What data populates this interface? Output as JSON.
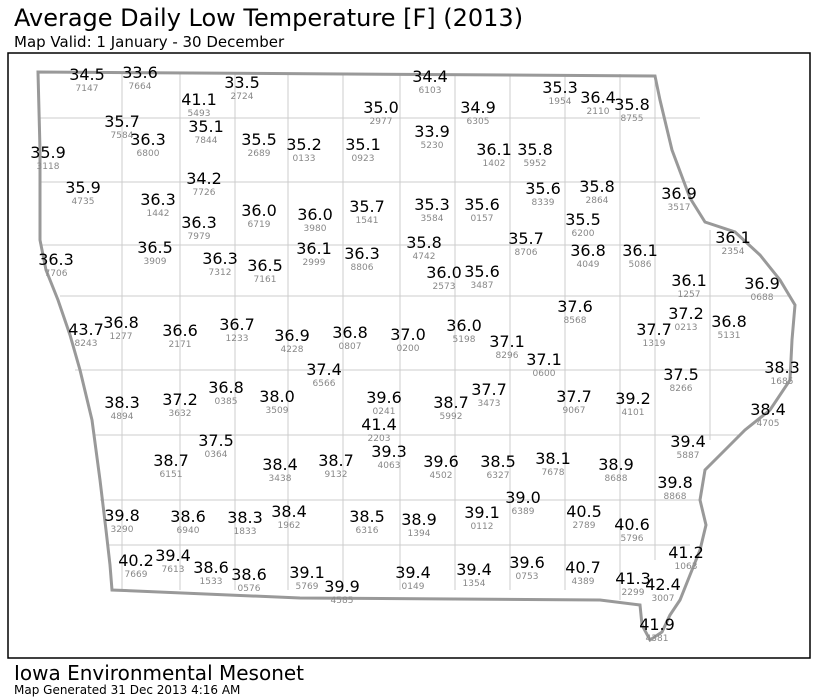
{
  "header": {
    "title": "Average Daily Low Temperature [F] (2013)",
    "subtitle": "Map Valid: 1 January - 30 December"
  },
  "footer": {
    "organization": "Iowa Environmental Mesonet",
    "generated": "Map Generated 31 Dec 2013 4:16 AM"
  },
  "stations": [
    [
      "34.5",
      "7147"
    ],
    [
      "33.6",
      "7664"
    ],
    [
      "41.1",
      "5493"
    ],
    [
      "33.5",
      "2724"
    ],
    [
      "34.4",
      "6103"
    ],
    [
      "35.0",
      "2977"
    ],
    [
      "34.9",
      "6305"
    ],
    [
      "35.3",
      "1954"
    ],
    [
      "36.4",
      "2110"
    ],
    [
      "35.8",
      "8755"
    ],
    [
      "35.7",
      "7584"
    ],
    [
      "36.3",
      "6800"
    ],
    [
      "35.1",
      "7844"
    ],
    [
      "35.5",
      "2689"
    ],
    [
      "35.2",
      "0133"
    ],
    [
      "35.1",
      "0923"
    ],
    [
      "33.9",
      "5230"
    ],
    [
      "36.1",
      "1402"
    ],
    [
      "35.8",
      "5952"
    ],
    [
      "35.9",
      "3118"
    ],
    [
      "35.9",
      "4735"
    ],
    [
      "36.3",
      "1442"
    ],
    [
      "34.2",
      "7726"
    ],
    [
      "36.3",
      "7979"
    ],
    [
      "36.0",
      "6719"
    ],
    [
      "36.0",
      "3980"
    ],
    [
      "35.7",
      "1541"
    ],
    [
      "35.3",
      "3584"
    ],
    [
      "35.6",
      "0157"
    ],
    [
      "35.6",
      "8339"
    ],
    [
      "35.8",
      "2864"
    ],
    [
      "36.9",
      "3517"
    ],
    [
      "35.5",
      "6200"
    ],
    [
      "36.5",
      "3909"
    ],
    [
      "36.3",
      "7706"
    ],
    [
      "36.3",
      "7312"
    ],
    [
      "36.5",
      "7161"
    ],
    [
      "36.1",
      "2999"
    ],
    [
      "36.3",
      "8806"
    ],
    [
      "35.8",
      "4742"
    ],
    [
      "36.0",
      "2573"
    ],
    [
      "35.6",
      "3487"
    ],
    [
      "35.7",
      "8706"
    ],
    [
      "36.8",
      "4049"
    ],
    [
      "36.1",
      "5086"
    ],
    [
      "36.1",
      "2354"
    ],
    [
      "36.1",
      "1257"
    ],
    [
      "36.9",
      "0688"
    ],
    [
      "43.7",
      "8243"
    ],
    [
      "36.8",
      "1277"
    ],
    [
      "36.6",
      "2171"
    ],
    [
      "36.7",
      "1233"
    ],
    [
      "36.9",
      "4228"
    ],
    [
      "36.8",
      "0807"
    ],
    [
      "37.0",
      "0200"
    ],
    [
      "36.0",
      "5198"
    ],
    [
      "37.1",
      "8296"
    ],
    [
      "37.6",
      "8568"
    ],
    [
      "37.7",
      "1319"
    ],
    [
      "37.2",
      "0213"
    ],
    [
      "36.8",
      "5131"
    ],
    [
      "37.1",
      "0600"
    ],
    [
      "37.4",
      "6566"
    ],
    [
      "38.3",
      "4894"
    ],
    [
      "37.2",
      "3632"
    ],
    [
      "36.8",
      "0385"
    ],
    [
      "38.0",
      "3509"
    ],
    [
      "39.6",
      "0241"
    ],
    [
      "38.7",
      "5992"
    ],
    [
      "37.7",
      "3473"
    ],
    [
      "37.7",
      "9067"
    ],
    [
      "39.2",
      "4101"
    ],
    [
      "37.5",
      "8266"
    ],
    [
      "38.3",
      "1685"
    ],
    [
      "38.4",
      "4705"
    ],
    [
      "41.4",
      "2203"
    ],
    [
      "37.5",
      "0364"
    ],
    [
      "38.7",
      "6151"
    ],
    [
      "38.4",
      "3438"
    ],
    [
      "38.7",
      "9132"
    ],
    [
      "39.3",
      "4063"
    ],
    [
      "39.6",
      "4502"
    ],
    [
      "38.5",
      "6327"
    ],
    [
      "38.1",
      "7678"
    ],
    [
      "38.9",
      "8688"
    ],
    [
      "39.4",
      "5887"
    ],
    [
      "39.8",
      "8868"
    ],
    [
      "39.8",
      "3290"
    ],
    [
      "38.6",
      "6940"
    ],
    [
      "38.3",
      "1833"
    ],
    [
      "38.4",
      "1962"
    ],
    [
      "38.5",
      "6316"
    ],
    [
      "38.9",
      "1394"
    ],
    [
      "39.1",
      "0112"
    ],
    [
      "39.0",
      "6389"
    ],
    [
      "40.5",
      "2789"
    ],
    [
      "40.6",
      "5796"
    ],
    [
      "40.2",
      "7669"
    ],
    [
      "39.4",
      "7613"
    ],
    [
      "38.6",
      "1533"
    ],
    [
      "38.6",
      "0576"
    ],
    [
      "39.1",
      "5769"
    ],
    [
      "39.9",
      "4585"
    ],
    [
      "39.4",
      "0149"
    ],
    [
      "39.4",
      "1354"
    ],
    [
      "39.6",
      "0753"
    ],
    [
      "40.7",
      "4389"
    ],
    [
      "41.2",
      "1063"
    ],
    [
      "41.3",
      "2299"
    ],
    [
      "42.4",
      "3007"
    ],
    [
      "41.9",
      "4381"
    ]
  ]
}
